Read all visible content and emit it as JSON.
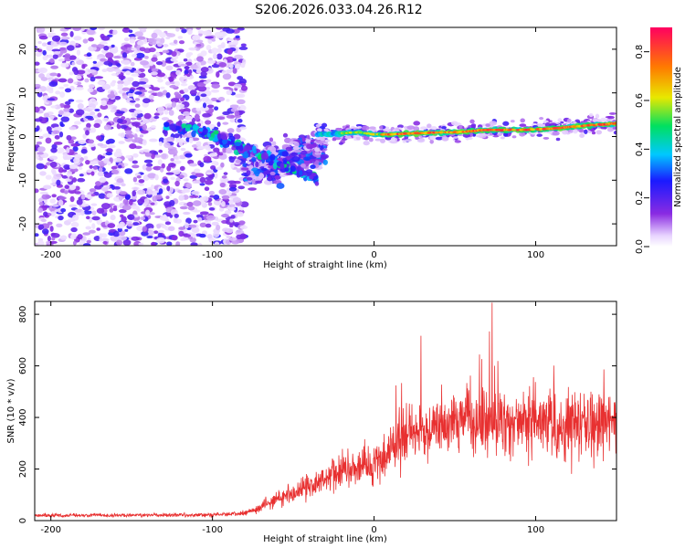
{
  "title": "S206.2026.033.04.26.R12",
  "chart_data": [
    {
      "type": "heatmap",
      "title": "S206.2026.033.04.26.R12",
      "xlabel": "Height of straight line (km)",
      "ylabel": "Frequency (Hz)",
      "xlim": [
        -210,
        150
      ],
      "ylim": [
        -25,
        25
      ],
      "xticks": [
        -200,
        -100,
        0,
        100
      ],
      "yticks": [
        20,
        10,
        0,
        -10,
        -20
      ],
      "colorbar": {
        "label": "Normalized spectral amplitude",
        "range": [
          0,
          0.9
        ],
        "ticks": [
          0.0,
          0.2,
          0.4,
          0.6,
          0.8
        ]
      },
      "ridge": {
        "description": "Dominant frequency ridge near 0-3 Hz for heights above -30 km",
        "x": [
          -30,
          -10,
          0,
          10,
          30,
          50,
          70,
          90,
          110,
          130,
          150
        ],
        "frequency": [
          0.5,
          1.0,
          0.5,
          0.5,
          0.8,
          1.0,
          1.5,
          1.5,
          1.8,
          2.5,
          3.0
        ]
      }
    },
    {
      "type": "line",
      "xlabel": "Height of straight line (km)",
      "ylabel": "SNR (10 * v/v)",
      "xlim": [
        -210,
        150
      ],
      "ylim": [
        0,
        850
      ],
      "xticks": [
        -200,
        -100,
        0,
        100
      ],
      "yticks": [
        0,
        200,
        400,
        600,
        800
      ],
      "series": [
        {
          "name": "SNR",
          "color": "#e83030",
          "envelope_x": [
            -210,
            -100,
            -80,
            -60,
            -40,
            -20,
            0,
            20,
            40,
            60,
            80,
            100,
            120,
            150
          ],
          "envelope_mean": [
            20,
            22,
            30,
            80,
            140,
            190,
            230,
            330,
            360,
            380,
            380,
            370,
            360,
            370
          ],
          "peak_x": 73,
          "peak_value": 845
        }
      ]
    }
  ]
}
